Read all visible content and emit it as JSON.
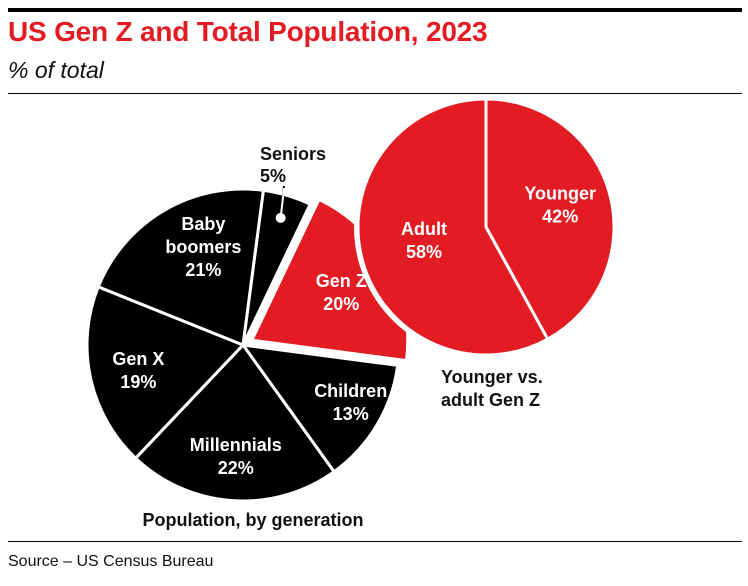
{
  "header": {
    "title": "US Gen Z and Total Population, 2023",
    "subtitle": "% of total"
  },
  "footer": {
    "source": "Source – US Census Bureau"
  },
  "colors": {
    "accent": "#e31b23",
    "dark": "#000000",
    "label_on_dark": "#ffffff",
    "label_outside": "#111111"
  },
  "chart_data": [
    {
      "type": "pie",
      "title": "Population, by generation",
      "slices": [
        {
          "label": "Seniors",
          "value": 5,
          "value_label": "5%",
          "color": "#000000"
        },
        {
          "label": "Gen Z",
          "value": 20,
          "value_label": "20%",
          "color": "#e31b23",
          "exploded": true
        },
        {
          "label": "Children",
          "value": 13,
          "value_label": "13%",
          "color": "#000000"
        },
        {
          "label": "Millennials",
          "value": 22,
          "value_label": "22%",
          "color": "#000000"
        },
        {
          "label": "Gen X",
          "value": 19,
          "value_label": "19%",
          "color": "#000000"
        },
        {
          "label": "Baby boomers",
          "value": 21,
          "value_label": "21%",
          "color": "#000000"
        }
      ]
    },
    {
      "type": "pie",
      "title": "Younger vs. adult Gen Z",
      "slices": [
        {
          "label": "Younger",
          "value": 42,
          "value_label": "42%",
          "color": "#e31b23"
        },
        {
          "label": "Adult",
          "value": 58,
          "value_label": "58%",
          "color": "#e31b23"
        }
      ]
    }
  ]
}
